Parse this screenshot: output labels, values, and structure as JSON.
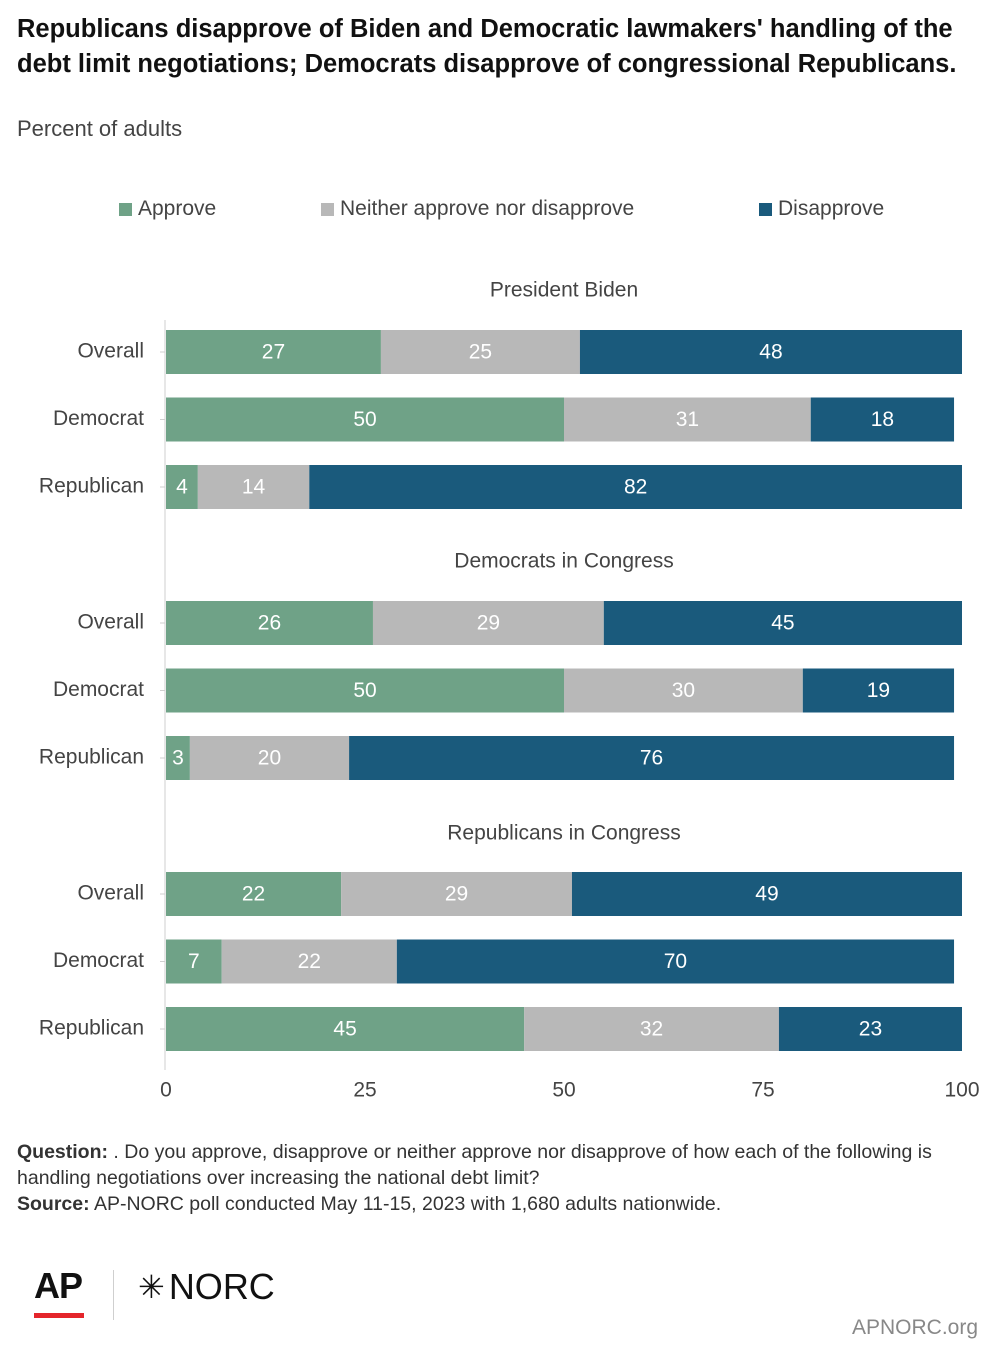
{
  "title": "Republicans disapprove of Biden and Democratic lawmakers' handling of the debt limit negotiations; Democrats disapprove of congressional Republicans.",
  "subtitle": "Percent of adults",
  "legend": [
    {
      "label": "Approve",
      "color": "#6fa287"
    },
    {
      "label": "Neither approve nor disapprove",
      "color": "#b8b8b8"
    },
    {
      "label": "Disapprove",
      "color": "#1a5a7c"
    }
  ],
  "chart_data": {
    "type": "bar",
    "orientation": "horizontal",
    "stacked": true,
    "xlim": [
      0,
      100
    ],
    "xticks": [
      0,
      25,
      50,
      75,
      100
    ],
    "xlabel": "",
    "ylabel": "",
    "grid": false,
    "legend_position": "top",
    "series_names": [
      "Approve",
      "Neither approve nor disapprove",
      "Disapprove"
    ],
    "groups": [
      {
        "title": "President Biden",
        "categories": [
          "Overall",
          "Democrat",
          "Republican"
        ],
        "values": [
          [
            27,
            25,
            48
          ],
          [
            50,
            31,
            18
          ],
          [
            4,
            14,
            82
          ]
        ]
      },
      {
        "title": "Democrats in Congress",
        "categories": [
          "Overall",
          "Democrat",
          "Republican"
        ],
        "values": [
          [
            26,
            29,
            45
          ],
          [
            50,
            30,
            19
          ],
          [
            3,
            20,
            76
          ]
        ]
      },
      {
        "title": "Republicans in Congress",
        "categories": [
          "Overall",
          "Democrat",
          "Republican"
        ],
        "values": [
          [
            22,
            29,
            49
          ],
          [
            7,
            22,
            70
          ],
          [
            45,
            32,
            23
          ]
        ]
      }
    ]
  },
  "footer": {
    "question_label": "Question:",
    "question_text": " . Do you approve, disapprove or neither approve nor disapprove of how each of the following is handling negotiations over increasing the national debt limit?",
    "source_label": "Source:",
    "source_text": " AP-NORC poll conducted May 11-15, 2023 with 1,680 adults nationwide."
  },
  "logos": {
    "ap": "AP",
    "norc": "NORC",
    "norc_mark": "✳",
    "site": "APNORC.org"
  }
}
